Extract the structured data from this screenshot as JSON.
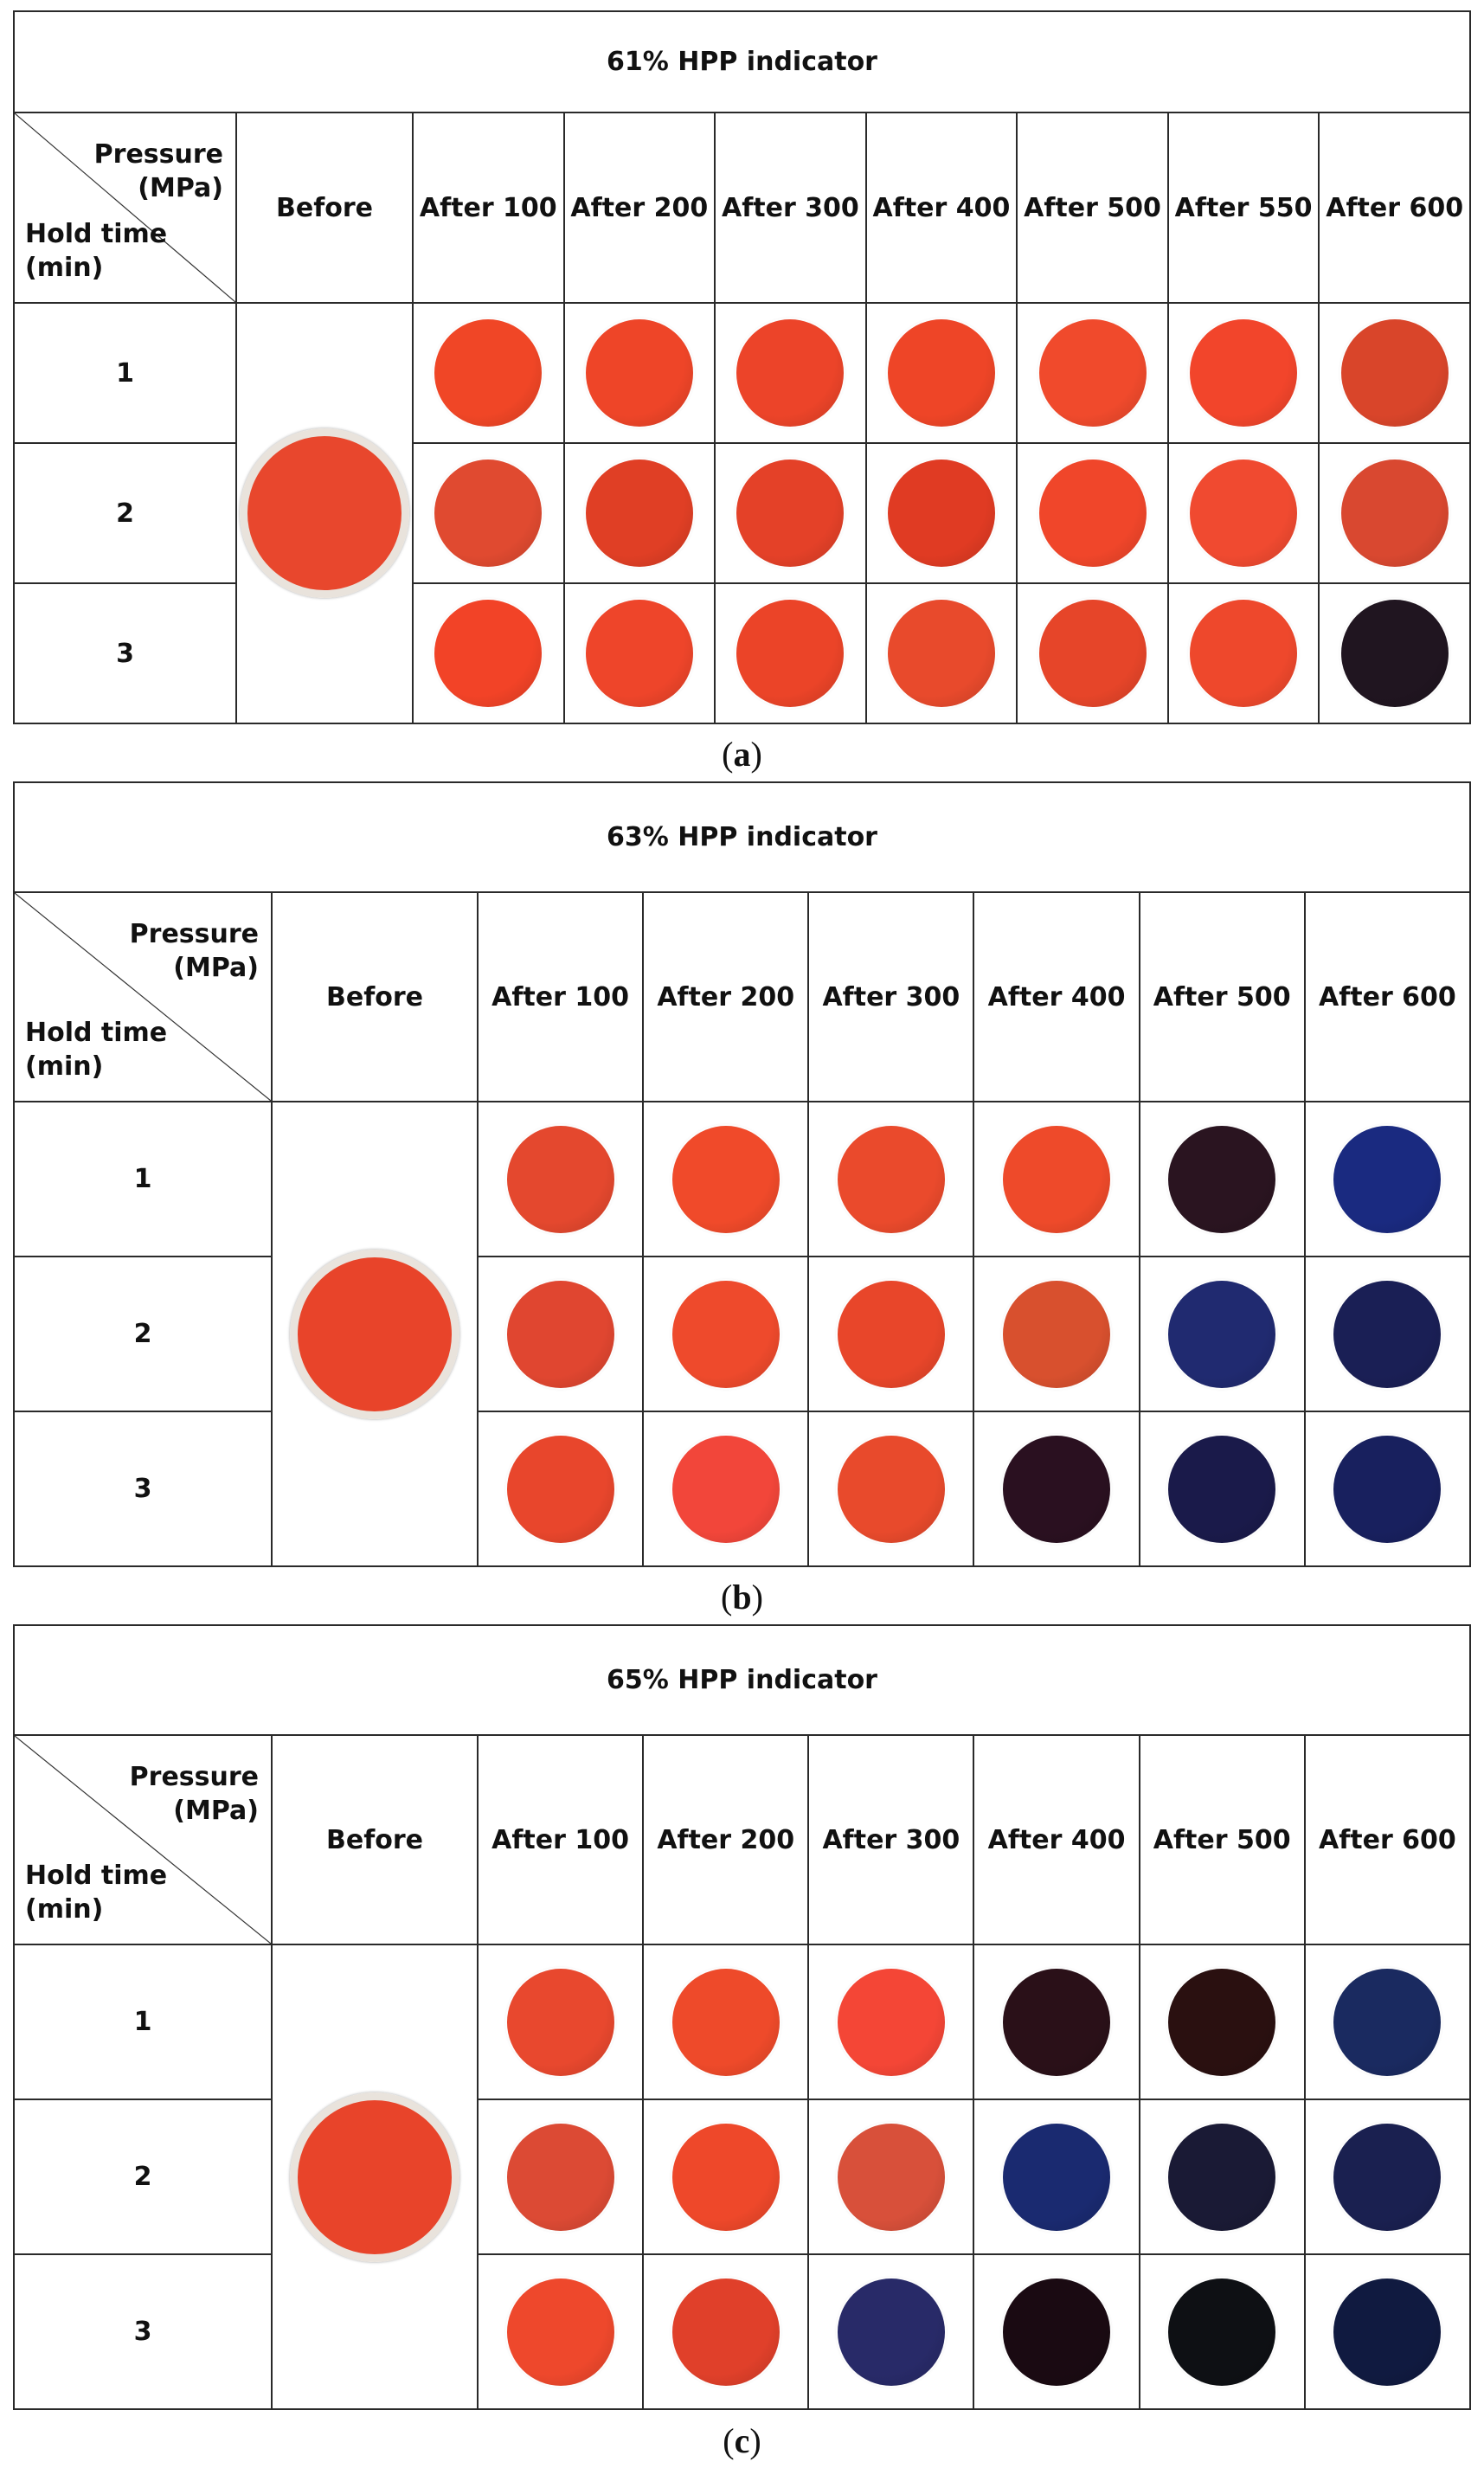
{
  "figure": {
    "corner_pressure_label": "Pressure",
    "corner_pressure_unit": "(MPa)",
    "corner_hold_label": "Hold time",
    "corner_hold_unit": "(min)",
    "before_label": "Before",
    "row_labels": [
      "1",
      "2",
      "3"
    ],
    "panels": [
      {
        "title": "61% HPP indicator",
        "caption_letter": "a",
        "columns": [
          "After 100",
          "After 200",
          "After 300",
          "After 400",
          "After 500",
          "After 550",
          "After 600"
        ],
        "before_color": "#e8472d",
        "colors": [
          [
            "#f04626",
            "#ee4528",
            "#ec4429",
            "#ee4527",
            "#f04a2c",
            "#f2452b",
            "#d9452a"
          ],
          [
            "#e04a30",
            "#e03f25",
            "#e44128",
            "#e03b23",
            "#f0462a",
            "#f04a30",
            "#d94830"
          ],
          [
            "#f24327",
            "#ee452a",
            "#eb4428",
            "#e84a2c",
            "#e64529",
            "#ee482c",
            "#201520"
          ]
        ]
      },
      {
        "title": "63% HPP indicator",
        "caption_letter": "b",
        "columns": [
          "After 100",
          "After 200",
          "After 300",
          "After 400",
          "After 500",
          "After 600"
        ],
        "before_color": "#e8442a",
        "colors": [
          [
            "#e4482e",
            "#f04a2a",
            "#ea4a2c",
            "#ee4a2a",
            "#2a1420",
            "#1a2a80"
          ],
          [
            "#e04630",
            "#ee4a2c",
            "#e8462a",
            "#d8502e",
            "#202a70",
            "#1a1f55"
          ],
          [
            "#e8462c",
            "#f2463a",
            "#e84a2c",
            "#2a1020",
            "#1a1a4a",
            "#18205e"
          ]
        ]
      },
      {
        "title": "65% HPP indicator",
        "caption_letter": "c",
        "columns": [
          "After 100",
          "After 200",
          "After 300",
          "After 400",
          "After 500",
          "After 600"
        ],
        "before_color": "#e8442a",
        "colors": [
          [
            "#e8482e",
            "#ee4a2a",
            "#f44636",
            "#2a1018",
            "#2a1010",
            "#1a2a60"
          ],
          [
            "#dc4a34",
            "#ee482a",
            "#d8503a",
            "#1a2a70",
            "#1a1a35",
            "#1a2050"
          ],
          [
            "#ee482c",
            "#e0402a",
            "#282a68",
            "#1a0a12",
            "#0e1014",
            "#101a40"
          ]
        ]
      }
    ]
  }
}
